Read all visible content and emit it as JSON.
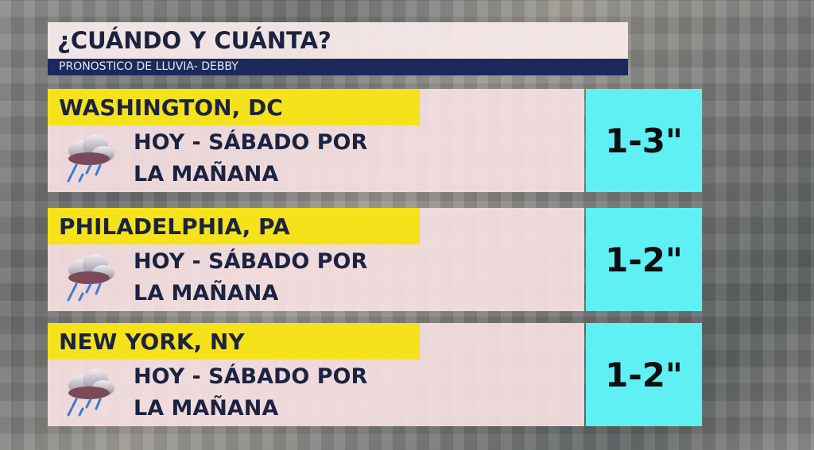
{
  "header": {
    "title": "¿CUÁNDO Y CUÁNTA?",
    "subtitle": "PRONOSTICO DE LLUVIA- DEBBY"
  },
  "rows": [
    {
      "city": "WASHINGTON, DC",
      "when_line1": "HOY - SÁBADO POR",
      "when_line2": "LA MAÑANA",
      "amount": "1-3\"",
      "icon": "rain-cloud-icon"
    },
    {
      "city": "PHILADELPHIA, PA",
      "when_line1": "HOY - SÁBADO POR",
      "when_line2": "LA MAÑANA",
      "amount": "1-2\"",
      "icon": "rain-cloud-icon"
    },
    {
      "city": "NEW YORK, NY",
      "when_line1": "HOY - SÁBADO POR",
      "when_line2": "LA MAÑANA",
      "amount": "1-2\"",
      "icon": "rain-cloud-icon"
    }
  ],
  "colors": {
    "label_bg": "#f5e21a",
    "amount_bg": "#5ff0f4",
    "subtitle_bg": "#1b2a5c",
    "text": "#1b2340"
  }
}
